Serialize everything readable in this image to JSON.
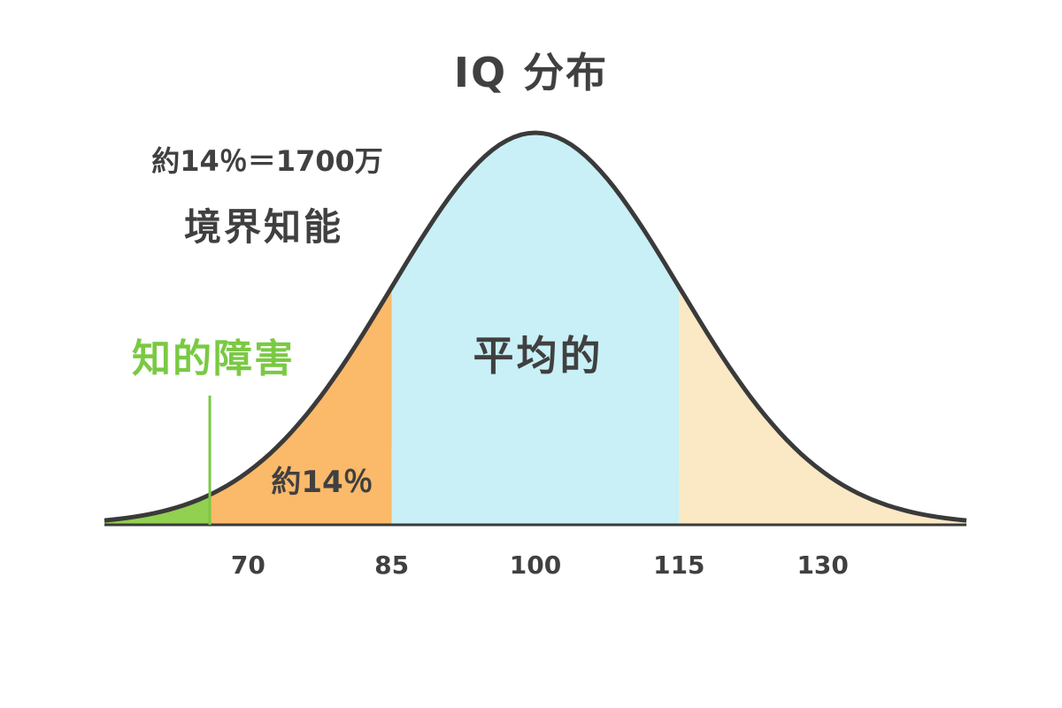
{
  "chart_data": {
    "type": "area",
    "title": "IQ 分布",
    "xlabel": "",
    "ylabel": "",
    "x_ticks": [
      70,
      85,
      100,
      115,
      130
    ],
    "xlim": [
      55,
      145
    ],
    "mean": 100,
    "sd": 15,
    "grid": false,
    "regions": [
      {
        "label": "知的障害",
        "from": 55,
        "to": 66,
        "color": "#92d050"
      },
      {
        "label": "約14％",
        "from": 66,
        "to": 85,
        "color": "#fbb96a"
      },
      {
        "label": "平均的",
        "from": 85,
        "to": 115,
        "color": "#c8f0f6"
      },
      {
        "label": "",
        "from": 115,
        "to": 145,
        "color": "#fbe8c4"
      }
    ],
    "annotations": {
      "top_left_line1": "約14％＝1700万",
      "top_left_line2": "境界知能",
      "intellectual_disability_marker_x": 66
    },
    "colors": {
      "curve": "#3a3a3a",
      "text": "#404040",
      "green_text": "#7ac943",
      "marker": "#7ac943"
    }
  }
}
